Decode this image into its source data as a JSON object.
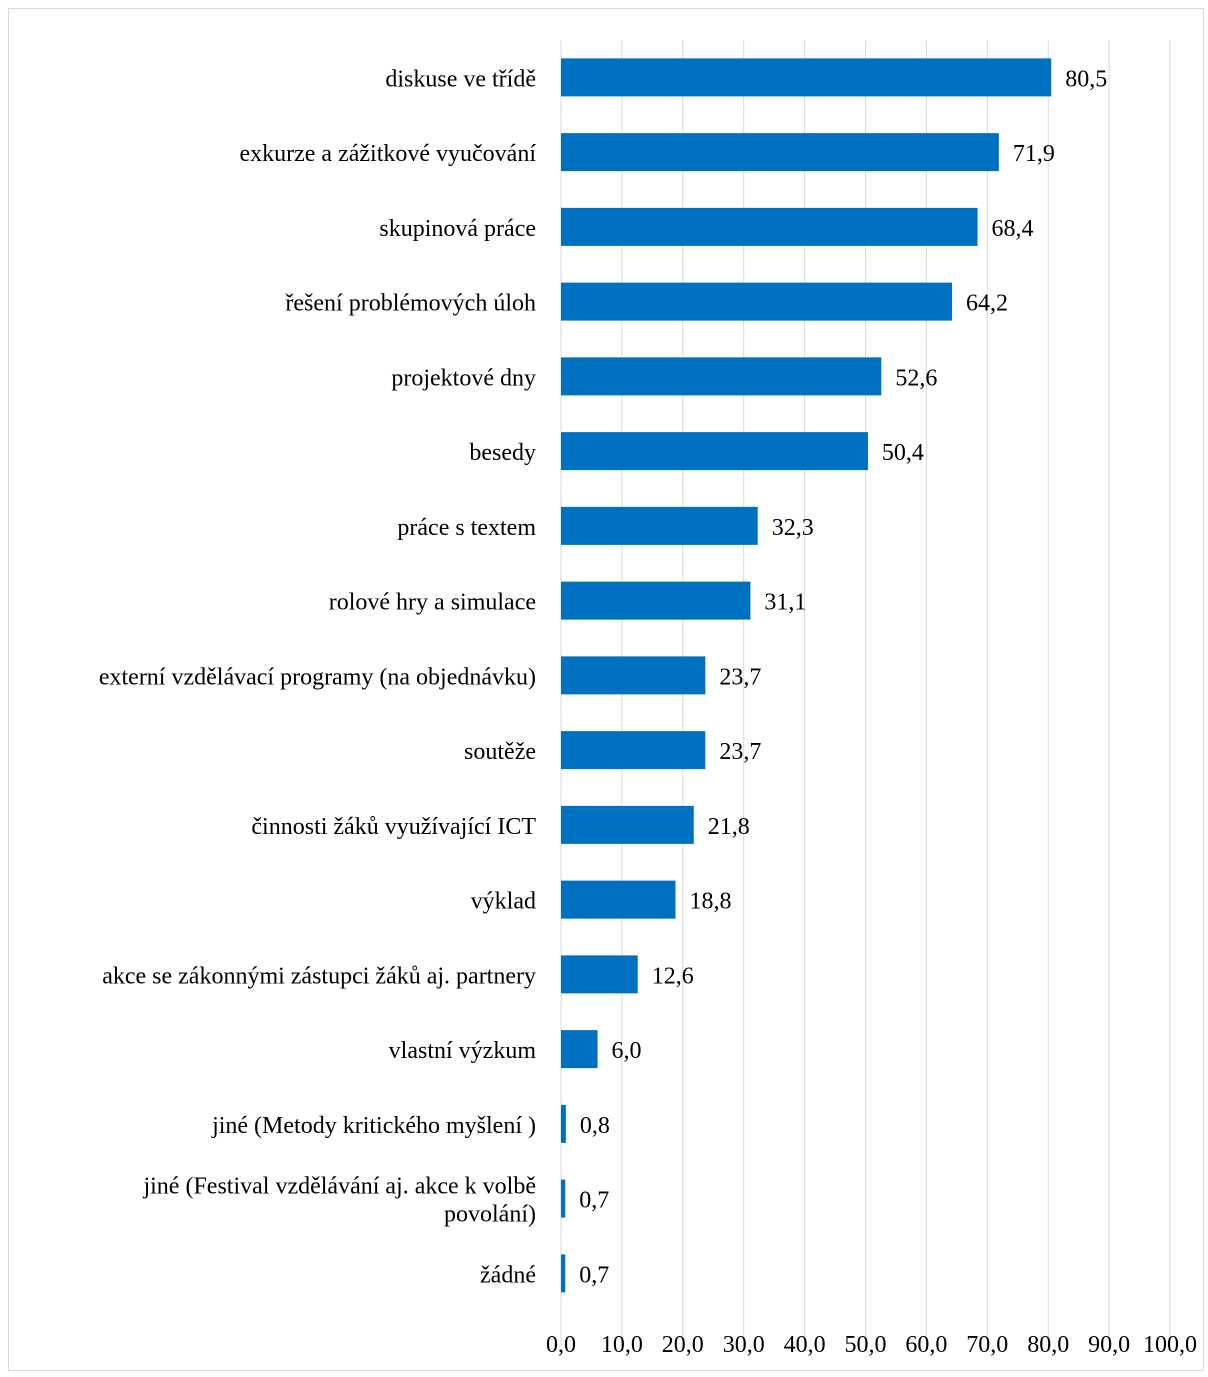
{
  "chart_data": {
    "type": "bar",
    "orientation": "horizontal",
    "title": "",
    "xlabel": "",
    "ylabel": "",
    "xlim": [
      0,
      100
    ],
    "xticks": [
      "0,0",
      "10,0",
      "20,0",
      "30,0",
      "40,0",
      "50,0",
      "60,0",
      "70,0",
      "80,0",
      "90,0",
      "100,0"
    ],
    "grid": "vertical",
    "bar_color": "#0070C0",
    "gridline_color": "#d9d9d9",
    "categories": [
      [
        "diskuse ve třídě"
      ],
      [
        "exkurze a zážitkové vyučování"
      ],
      [
        "skupinová práce"
      ],
      [
        "řešení problémových úloh"
      ],
      [
        "projektové dny"
      ],
      [
        "besedy"
      ],
      [
        "práce s textem"
      ],
      [
        "rolové hry a simulace"
      ],
      [
        "externí vzdělávací programy (na objednávku)"
      ],
      [
        "soutěže"
      ],
      [
        "činnosti žáků využívající ICT"
      ],
      [
        "výklad"
      ],
      [
        "akce se zákonnými zástupci žáků aj. partnery"
      ],
      [
        "vlastní výzkum"
      ],
      [
        "jiné (Metody kritického myšlení )"
      ],
      [
        "jiné (Festival vzdělávání aj. akce k volbě",
        "povolání)"
      ],
      [
        "žádné"
      ]
    ],
    "values": [
      80.5,
      71.9,
      68.4,
      64.2,
      52.6,
      50.4,
      32.3,
      31.1,
      23.7,
      23.7,
      21.8,
      18.8,
      12.6,
      6.0,
      0.8,
      0.7,
      0.7
    ],
    "value_labels": [
      "80,5",
      "71,9",
      "68,4",
      "64,2",
      "52,6",
      "50,4",
      "32,3",
      "31,1",
      "23,7",
      "23,7",
      "21,8",
      "18,8",
      "12,6",
      "6,0",
      "0,8",
      "0,7",
      "0,7"
    ]
  }
}
